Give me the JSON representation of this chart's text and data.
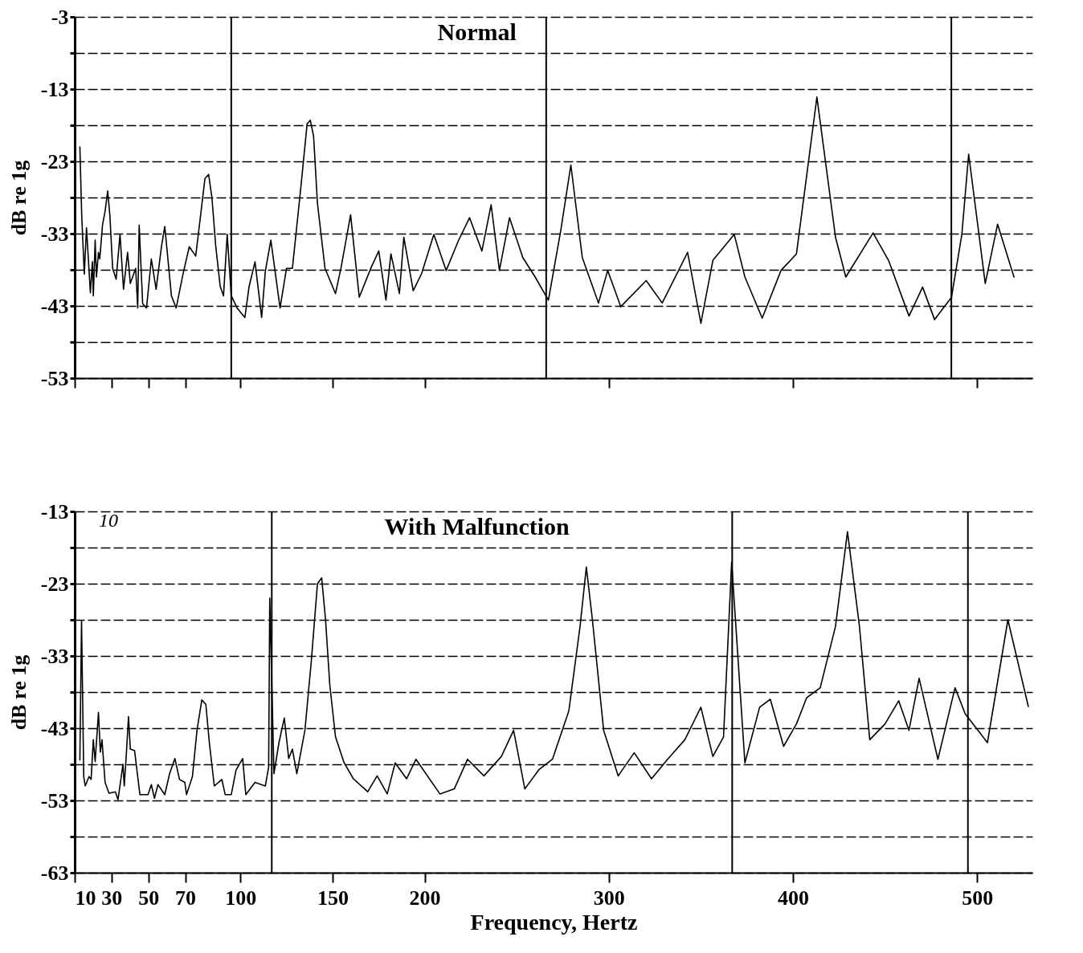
{
  "chart_data": [
    {
      "type": "line",
      "title": "Normal",
      "ylabel": "dB re 1g",
      "tick_labels": "y",
      "grid": "y",
      "line_style": "solid",
      "xlim": [
        10,
        530
      ],
      "xticks": [
        10,
        30,
        50,
        70,
        100,
        150,
        200,
        300,
        400,
        500
      ],
      "ylim": [
        -53,
        -3
      ],
      "yticks": [
        -3,
        {
          "value": -8,
          "label": null
        },
        -13,
        {
          "value": -18,
          "label": null
        },
        -23,
        {
          "value": -28,
          "label": null
        },
        -33,
        {
          "value": -38,
          "label": null
        },
        -43,
        {
          "value": -48,
          "label": null
        },
        -53
      ],
      "x": [
        12.8,
        13.8,
        15.2,
        16.4,
        18.5,
        19.6,
        20.1,
        21.1,
        21.8,
        22.9,
        23.6,
        25.1,
        26.5,
        27.9,
        29.1,
        30.6,
        32.5,
        34.6,
        36.5,
        38.7,
        40.2,
        43.1,
        44.2,
        45,
        46.9,
        49,
        51.6,
        54.2,
        57.1,
        58.9,
        60.6,
        62.5,
        65.1,
        68.8,
        72.2,
        75.7,
        78.1,
        80.7,
        82.7,
        84.5,
        86.6,
        89,
        90.8,
        92.8,
        95,
        98.2,
        102.4,
        104.7,
        107.9,
        111.5,
        113.5,
        116.5,
        121.5,
        125,
        128.2,
        132.9,
        136.2,
        137.9,
        139.7,
        141.8,
        145.9,
        151.6,
        154.7,
        159.8,
        164.5,
        171.1,
        175.1,
        179,
        181.7,
        186.3,
        188.7,
        193.8,
        198.4,
        205,
        211.7,
        218.3,
        224.4,
        231.1,
        236.1,
        240.6,
        246.1,
        253.3,
        260,
        267.2,
        273.9,
        279.4,
        285.6,
        294.4,
        299.4,
        306.5,
        320.3,
        329,
        342.8,
        350,
        356.5,
        368.1,
        373.9,
        383.3,
        393.5,
        401.9,
        413,
        423.1,
        428.7,
        443.5,
        451.9,
        463,
        470.4,
        476.9,
        486.1,
        491.7,
        495.4,
        504.4,
        511.1,
        520
      ],
      "series": [
        {
          "color": "#000000",
          "values": [
            -21,
            -30.5,
            -38.6,
            -32.2,
            -41.2,
            -36.9,
            -41.6,
            -33.9,
            -39,
            -35.6,
            -36.5,
            -31.8,
            -29.9,
            -27.1,
            -30.5,
            -37.8,
            -39.3,
            -33.1,
            -40.7,
            -35.6,
            -39.9,
            -37.8,
            -43.3,
            -31.8,
            -42.7,
            -43.3,
            -36.5,
            -40.7,
            -34.8,
            -32,
            -36.5,
            -41.6,
            -43.3,
            -38.6,
            -34.8,
            -36.1,
            -31,
            -25.4,
            -24.8,
            -28,
            -34.8,
            -40.3,
            -41.6,
            -33.1,
            -41.6,
            -43.3,
            -44.6,
            -40.3,
            -36.9,
            -44.6,
            -38.2,
            -33.9,
            -43.3,
            -37.8,
            -37.8,
            -26.3,
            -17.8,
            -17.3,
            -19.5,
            -28.8,
            -37.8,
            -41.3,
            -37.6,
            -30.4,
            -41.8,
            -37.6,
            -35.4,
            -42.2,
            -35.8,
            -41.3,
            -33.5,
            -40.9,
            -38.5,
            -33.1,
            -38.1,
            -34,
            -30.8,
            -35.4,
            -29,
            -38.1,
            -30.8,
            -36.3,
            -39,
            -42.2,
            -32.6,
            -23.5,
            -36.3,
            -42.6,
            -38.1,
            -43.1,
            -39.5,
            -42.6,
            -35.6,
            -45.4,
            -36.7,
            -33.1,
            -39,
            -44.7,
            -38.1,
            -35.8,
            -14.1,
            -33.5,
            -39,
            -32.9,
            -36.7,
            -44.4,
            -40.4,
            -44.9,
            -41.8,
            -33.1,
            -22,
            -39.9,
            -31.7,
            -39
          ]
        }
      ],
      "ref_lines": [
        {
          "axis": "x",
          "value": 95
        },
        {
          "axis": "x",
          "value": 266
        },
        {
          "axis": "x",
          "value": 486
        }
      ]
    },
    {
      "type": "line",
      "title": "With Malfunction",
      "xlabel": "Frequency, Hertz",
      "ylabel": "dB re 1g",
      "grid": "y",
      "line_style": "solid",
      "xlim": [
        10,
        530
      ],
      "xticks": [
        10,
        30,
        50,
        70,
        100,
        150,
        200,
        300,
        400,
        500
      ],
      "ylim": [
        -63,
        -13
      ],
      "yticks": [
        -13,
        {
          "value": -18,
          "label": null
        },
        -23,
        {
          "value": -28,
          "label": null
        },
        -33,
        {
          "value": -38,
          "label": null
        },
        -43,
        {
          "value": -48,
          "label": null
        },
        -53,
        {
          "value": -58,
          "label": null
        },
        -63
      ],
      "x": [
        12.8,
        13.7,
        14.9,
        15.7,
        17.8,
        18.9,
        20.1,
        21.1,
        22.9,
        23.9,
        24.8,
        26.5,
        28.6,
        32.1,
        33.5,
        36.2,
        36.9,
        38.1,
        39.2,
        40.2,
        42.5,
        45.4,
        49.8,
        51.6,
        53.3,
        55.2,
        58.9,
        61.5,
        64.4,
        66.9,
        69.8,
        70.7,
        73.9,
        76.4,
        79,
        81.2,
        83.1,
        85.8,
        89.9,
        91.7,
        95,
        97.6,
        101.2,
        102.9,
        107.9,
        113.5,
        115.3,
        115.9,
        118.2,
        120.9,
        123.8,
        126.2,
        128.2,
        130.6,
        135,
        138.5,
        141.8,
        144.1,
        146.2,
        148.5,
        151.6,
        156.3,
        161.3,
        169.1,
        174.2,
        179.7,
        184,
        190.2,
        195.3,
        208.3,
        216.1,
        223.3,
        232.2,
        241.7,
        248.3,
        254.4,
        262.2,
        269.4,
        278.3,
        284.4,
        287.8,
        291.1,
        297.2,
        305.1,
        313.8,
        323.2,
        331.9,
        341.3,
        350,
        356.5,
        362.3,
        366.7,
        373.9,
        381.9,
        387.7,
        394.9,
        401.9,
        407.4,
        414.8,
        423.1,
        429.6,
        436.1,
        441.7,
        450,
        457.4,
        463,
        468.5,
        478.7,
        488,
        493.5,
        505.6,
        516.7,
        527.8
      ],
      "series": [
        {
          "color": "#000000",
          "values": [
            -47.4,
            -28.1,
            -49.7,
            -51,
            -49.7,
            -50.1,
            -44.6,
            -47.6,
            -40.8,
            -46.3,
            -44.6,
            -50.5,
            -52,
            -51.8,
            -52.9,
            -48,
            -51,
            -46.3,
            -41.4,
            -45.9,
            -46.1,
            -52.2,
            -52.2,
            -50.8,
            -52.7,
            -50.8,
            -52.2,
            -49.3,
            -47.2,
            -50.1,
            -50.5,
            -52.2,
            -49.7,
            -43.3,
            -39.1,
            -39.7,
            -45,
            -51,
            -50.1,
            -52.2,
            -52.2,
            -48.8,
            -47.2,
            -52.2,
            -50.5,
            -51,
            -48.4,
            -25,
            -49.3,
            -45,
            -41.6,
            -47.2,
            -45.9,
            -49.3,
            -43.3,
            -33.6,
            -23,
            -22.2,
            -28,
            -37,
            -44.2,
            -47.8,
            -50,
            -51.8,
            -49.6,
            -52.1,
            -47.8,
            -50,
            -47.3,
            -52.1,
            -51.4,
            -47.3,
            -49.6,
            -46.9,
            -43.3,
            -51.4,
            -48.7,
            -47.3,
            -40.6,
            -28.9,
            -20.7,
            -28,
            -43.3,
            -49.6,
            -46.4,
            -50,
            -47.3,
            -44.6,
            -40.1,
            -46.9,
            -44.2,
            -20,
            -47.8,
            -40.1,
            -39,
            -45.5,
            -42.4,
            -38.8,
            -37.4,
            -28.9,
            -15.8,
            -28.9,
            -44.6,
            -42.4,
            -39.2,
            -43.3,
            -36.1,
            -47.3,
            -37.4,
            -41,
            -45,
            -28,
            -40
          ]
        }
      ],
      "ref_lines": [
        {
          "axis": "x",
          "value": 117
        },
        {
          "axis": "x",
          "value": 367
        },
        {
          "axis": "x",
          "value": 495
        }
      ],
      "annotations": [
        "10"
      ]
    }
  ]
}
